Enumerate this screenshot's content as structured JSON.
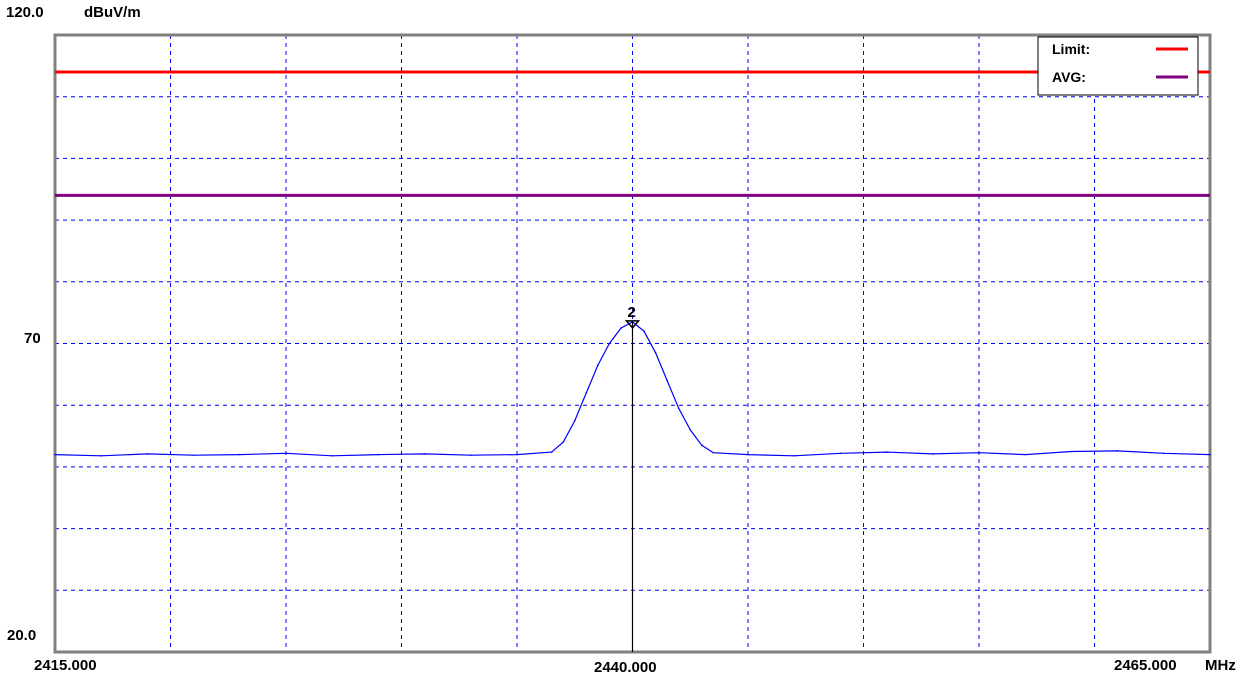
{
  "chart_data": {
    "type": "line",
    "ylabel": "dBuV/m",
    "xlabel": "MHz",
    "xlim": [
      2415,
      2465
    ],
    "ylim": [
      20,
      120
    ],
    "y_tick_labels": [
      "120.0",
      "70",
      "20.0"
    ],
    "x_tick_labels": [
      "2415.000",
      "2440.000",
      "2465.000"
    ],
    "grid": true,
    "grid_divisions": {
      "x": 10,
      "y": 10
    },
    "legend": {
      "position": "top-right",
      "entries": [
        {
          "label": "Limit:",
          "color": "#ff0000"
        },
        {
          "label": "AVG:",
          "color": "#800080"
        }
      ]
    },
    "limit_lines": [
      {
        "name": "Limit",
        "value": 114,
        "color": "#ff0000"
      },
      {
        "name": "AVG",
        "value": 94,
        "color": "#800080"
      }
    ],
    "series": [
      {
        "color": "#0000ff",
        "x": [
          2415.0,
          2417.0,
          2419.0,
          2421.0,
          2423.0,
          2425.0,
          2427.0,
          2429.0,
          2431.0,
          2433.0,
          2435.0,
          2436.5,
          2437.0,
          2437.5,
          2438.0,
          2438.5,
          2439.0,
          2439.5,
          2440.0,
          2440.5,
          2441.0,
          2441.5,
          2442.0,
          2442.5,
          2443.0,
          2443.5,
          2445.0,
          2447.0,
          2449.0,
          2451.0,
          2453.0,
          2455.0,
          2457.0,
          2459.0,
          2461.0,
          2463.0,
          2465.0
        ],
        "y": [
          52.0,
          51.8,
          52.1,
          51.9,
          52.0,
          52.2,
          51.8,
          52.0,
          52.1,
          51.9,
          52.0,
          52.4,
          54.0,
          57.5,
          62.0,
          66.5,
          70.0,
          72.5,
          73.5,
          72.0,
          68.5,
          64.0,
          59.5,
          56.0,
          53.5,
          52.3,
          52.0,
          51.8,
          52.2,
          52.4,
          52.1,
          52.3,
          52.0,
          52.5,
          52.6,
          52.2,
          52.0
        ]
      }
    ],
    "marker": {
      "label": "2",
      "x": 2440.0,
      "y": 73.5
    }
  }
}
